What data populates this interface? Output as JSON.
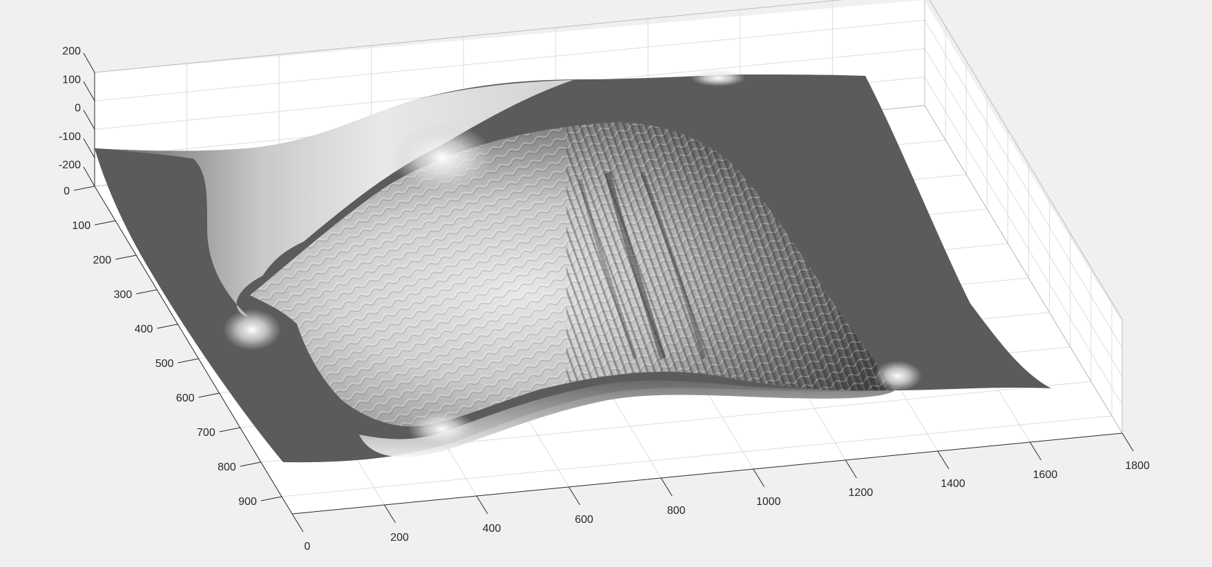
{
  "chart_data": {
    "type": "surface",
    "title": "",
    "xlabel": "",
    "ylabel": "",
    "zlabel": "",
    "grid": true,
    "colormap": "gray",
    "shading": "interp",
    "x_axis": {
      "ticks": [
        0,
        200,
        400,
        600,
        800,
        1000,
        1200,
        1400,
        1600,
        1800
      ],
      "tick_labels": [
        "0",
        "200",
        "400",
        "600",
        "800",
        "1000",
        "1200",
        "1400",
        "1600",
        "1800"
      ],
      "range": [
        0,
        1800
      ]
    },
    "y_axis": {
      "ticks": [
        0,
        100,
        200,
        300,
        400,
        500,
        600,
        700,
        800,
        900
      ],
      "tick_labels": [
        "0",
        "100",
        "200",
        "300",
        "400",
        "500",
        "600",
        "700",
        "800",
        "900"
      ],
      "range": [
        0,
        950
      ]
    },
    "z_axis": {
      "ticks": [
        -200,
        -100,
        0,
        100,
        200
      ],
      "tick_labels": [
        "-200",
        "-100",
        "0",
        "100",
        "200"
      ],
      "range": [
        -200,
        200
      ]
    },
    "surface": {
      "description_of_values": "height field; flat plane near z = -150 with a central raised textured mound spanning roughly x 300–1500, y 100–800",
      "base_level": -150,
      "peak_level": -20
    },
    "colors": {
      "background": "#f0f0f0",
      "axes_face": "#ffffff",
      "surface_dark": "#595959",
      "surface_light": "#f2f2f2"
    }
  }
}
